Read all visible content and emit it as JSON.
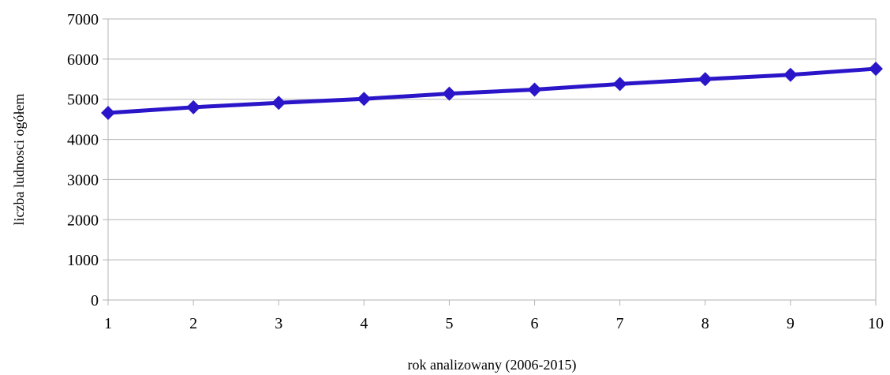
{
  "chart_data": {
    "type": "line",
    "title": "",
    "xlabel": "rok analizowany (2006-2015)",
    "ylabel": "liczba ludnosci ogółem",
    "x": [
      1,
      2,
      3,
      4,
      5,
      6,
      7,
      8,
      9,
      10
    ],
    "x_tick_labels": [
      "1",
      "2",
      "3",
      "4",
      "5",
      "6",
      "7",
      "8",
      "9",
      "10"
    ],
    "y_tick_labels": [
      "0",
      "1000",
      "2000",
      "3000",
      "4000",
      "5000",
      "6000",
      "7000"
    ],
    "y_ticks": [
      0,
      1000,
      2000,
      3000,
      4000,
      5000,
      6000,
      7000
    ],
    "xlim": [
      1,
      10
    ],
    "ylim": [
      0,
      7000
    ],
    "grid": "horizontal",
    "legend": "none",
    "series": [
      {
        "values": [
          4660,
          4800,
          4910,
          5010,
          5140,
          5240,
          5380,
          5500,
          5610,
          5760
        ],
        "color": "#2a16c8",
        "marker": "diamond"
      }
    ]
  }
}
